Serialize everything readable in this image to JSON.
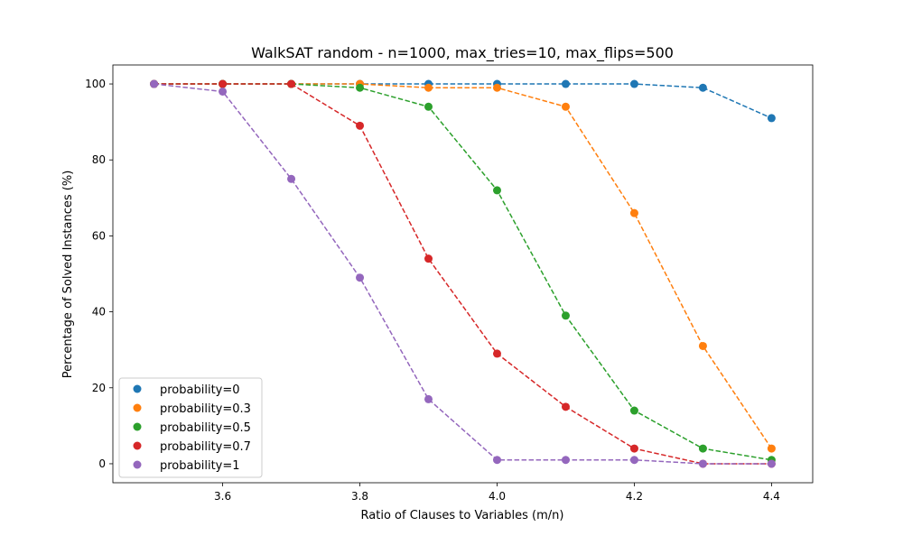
{
  "chart_data": {
    "type": "line",
    "title": "WalkSAT random - n=1000, max_tries=10, max_flips=500",
    "xlabel": "Ratio of Clauses to Variables (m/n)",
    "ylabel": "Percentage of Solved Instances (%)",
    "xlim": [
      3.44,
      4.46
    ],
    "ylim": [
      -5,
      105
    ],
    "xticks": [
      3.6,
      3.8,
      4.0,
      4.2,
      4.4
    ],
    "xtick_labels": [
      "3.6",
      "3.8",
      "4.0",
      "4.2",
      "4.4"
    ],
    "yticks": [
      0,
      20,
      40,
      60,
      80,
      100
    ],
    "ytick_labels": [
      "0",
      "20",
      "40",
      "60",
      "80",
      "100"
    ],
    "grid": false,
    "legend_position": "lower-left",
    "x": [
      3.5,
      3.6,
      3.7,
      3.8,
      3.9,
      4.0,
      4.1,
      4.2,
      4.3,
      4.4
    ],
    "series": [
      {
        "name": "probability=0",
        "color": "#1f77b4",
        "values": [
          100,
          100,
          100,
          100,
          100,
          100,
          100,
          100,
          99,
          91
        ]
      },
      {
        "name": "probability=0.3",
        "color": "#ff7f0e",
        "values": [
          100,
          100,
          100,
          100,
          99,
          99,
          94,
          66,
          31,
          4
        ]
      },
      {
        "name": "probability=0.5",
        "color": "#2ca02c",
        "values": [
          100,
          100,
          100,
          99,
          94,
          72,
          39,
          14,
          4,
          1
        ]
      },
      {
        "name": "probability=0.7",
        "color": "#d62728",
        "values": [
          100,
          100,
          100,
          89,
          54,
          29,
          15,
          4,
          0,
          0
        ]
      },
      {
        "name": "probability=1",
        "color": "#9467bd",
        "values": [
          100,
          98,
          75,
          49,
          17,
          1,
          1,
          1,
          0,
          0
        ]
      }
    ]
  }
}
